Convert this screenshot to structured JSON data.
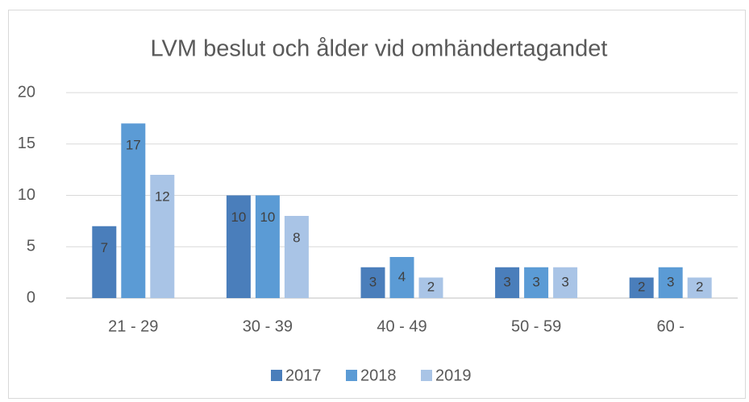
{
  "chart_data": {
    "type": "bar",
    "title": "LVM beslut och ålder vid omhändertagandet",
    "categories": [
      "21 - 29",
      "30 - 39",
      "40 - 49",
      "50 - 59",
      "60 -"
    ],
    "series": [
      {
        "name": "2017",
        "color": "#4a7ebb",
        "values": [
          7,
          10,
          3,
          3,
          2
        ]
      },
      {
        "name": "2018",
        "color": "#5b9bd5",
        "values": [
          17,
          10,
          4,
          3,
          3
        ]
      },
      {
        "name": "2019",
        "color": "#a9c4e6",
        "values": [
          12,
          8,
          2,
          3,
          2
        ]
      }
    ],
    "ylim": [
      0,
      20
    ],
    "yticks": [
      0,
      5,
      10,
      15,
      20
    ],
    "grid": true,
    "legend": "bottom"
  }
}
